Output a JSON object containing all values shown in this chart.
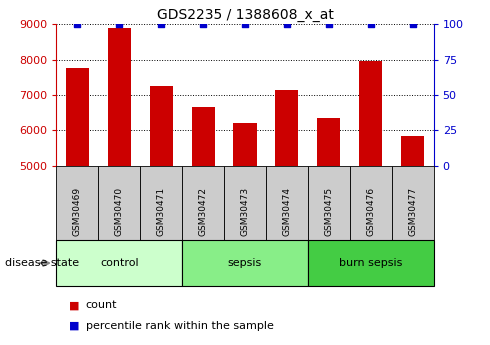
{
  "title": "GDS2235 / 1388608_x_at",
  "samples": [
    "GSM30469",
    "GSM30470",
    "GSM30471",
    "GSM30472",
    "GSM30473",
    "GSM30474",
    "GSM30475",
    "GSM30476",
    "GSM30477"
  ],
  "counts": [
    7750,
    8900,
    7250,
    6650,
    6200,
    7150,
    6350,
    7950,
    5850
  ],
  "percentiles": [
    100,
    100,
    100,
    100,
    100,
    100,
    100,
    100,
    100
  ],
  "ylim_left": [
    5000,
    9000
  ],
  "ylim_right": [
    0,
    100
  ],
  "yticks_left": [
    5000,
    6000,
    7000,
    8000,
    9000
  ],
  "yticks_right": [
    0,
    25,
    50,
    75,
    100
  ],
  "bar_color": "#CC0000",
  "dot_color": "#0000CC",
  "groups": [
    {
      "label": "control",
      "indices": [
        0,
        1,
        2
      ],
      "color": "#ccffcc"
    },
    {
      "label": "sepsis",
      "indices": [
        3,
        4,
        5
      ],
      "color": "#88ee88"
    },
    {
      "label": "burn sepsis",
      "indices": [
        6,
        7,
        8
      ],
      "color": "#44cc44"
    }
  ],
  "disease_state_label": "disease state",
  "legend_count_label": "count",
  "legend_percentile_label": "percentile rank within the sample",
  "background_color": "#ffffff",
  "left_axis_color": "#CC0000",
  "right_axis_color": "#0000CC",
  "sample_box_color": "#cccccc",
  "dot_size": 15
}
